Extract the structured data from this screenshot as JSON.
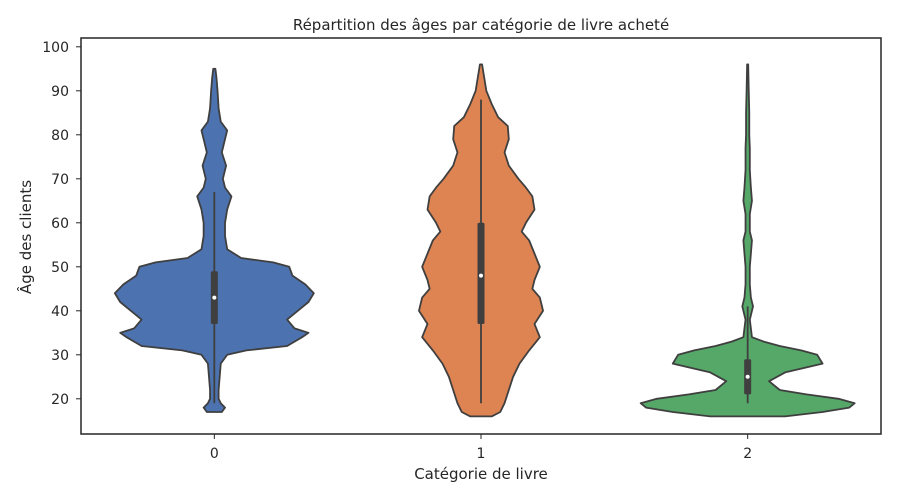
{
  "chart_data": {
    "type": "violin",
    "title": "Répartition des âges par catégorie de livre acheté",
    "xlabel": "Catégorie de livre",
    "ylabel": "Âge des clients",
    "categories": [
      "0",
      "1",
      "2"
    ],
    "ylim": [
      12,
      102
    ],
    "yticks": [
      20,
      30,
      40,
      50,
      60,
      70,
      80,
      90,
      100
    ],
    "grid": false,
    "colors": [
      "#4c72b0",
      "#dd8452",
      "#55a868"
    ],
    "outline_color": "#3f3f3f",
    "violins": [
      {
        "category": "0",
        "min": 17,
        "max": 95,
        "q1": 37,
        "median": 43,
        "q3": 49,
        "whisker_low": 19,
        "whisker_high": 67,
        "profile": [
          [
            17,
            0.07
          ],
          [
            18,
            0.1
          ],
          [
            19,
            0.06
          ],
          [
            20,
            0.04
          ],
          [
            22,
            0.04
          ],
          [
            25,
            0.05
          ],
          [
            28,
            0.06
          ],
          [
            30,
            0.12
          ],
          [
            31,
            0.3
          ],
          [
            32,
            0.68
          ],
          [
            33,
            0.75
          ],
          [
            34,
            0.82
          ],
          [
            35,
            0.88
          ],
          [
            36,
            0.75
          ],
          [
            38,
            0.68
          ],
          [
            40,
            0.78
          ],
          [
            42,
            0.88
          ],
          [
            44,
            0.93
          ],
          [
            46,
            0.85
          ],
          [
            48,
            0.73
          ],
          [
            50,
            0.7
          ],
          [
            51,
            0.55
          ],
          [
            52,
            0.25
          ],
          [
            54,
            0.12
          ],
          [
            57,
            0.1
          ],
          [
            60,
            0.1
          ],
          [
            63,
            0.12
          ],
          [
            66,
            0.16
          ],
          [
            68,
            0.1
          ],
          [
            70,
            0.08
          ],
          [
            73,
            0.11
          ],
          [
            76,
            0.07
          ],
          [
            79,
            0.1
          ],
          [
            81,
            0.12
          ],
          [
            83,
            0.06
          ],
          [
            86,
            0.04
          ],
          [
            90,
            0.03
          ],
          [
            93,
            0.02
          ],
          [
            95,
            0.01
          ]
        ]
      },
      {
        "category": "1",
        "min": 16,
        "max": 96,
        "q1": 37,
        "median": 48,
        "q3": 60,
        "whisker_low": 19,
        "whisker_high": 88,
        "profile": [
          [
            16,
            0.1
          ],
          [
            17,
            0.18
          ],
          [
            19,
            0.22
          ],
          [
            22,
            0.26
          ],
          [
            25,
            0.3
          ],
          [
            28,
            0.36
          ],
          [
            31,
            0.45
          ],
          [
            34,
            0.55
          ],
          [
            37,
            0.5
          ],
          [
            40,
            0.58
          ],
          [
            43,
            0.55
          ],
          [
            45,
            0.48
          ],
          [
            47,
            0.5
          ],
          [
            50,
            0.55
          ],
          [
            53,
            0.5
          ],
          [
            56,
            0.45
          ],
          [
            58,
            0.38
          ],
          [
            60,
            0.42
          ],
          [
            63,
            0.5
          ],
          [
            66,
            0.48
          ],
          [
            68,
            0.42
          ],
          [
            70,
            0.35
          ],
          [
            73,
            0.26
          ],
          [
            76,
            0.22
          ],
          [
            79,
            0.26
          ],
          [
            82,
            0.25
          ],
          [
            84,
            0.16
          ],
          [
            87,
            0.1
          ],
          [
            90,
            0.05
          ],
          [
            93,
            0.03
          ],
          [
            96,
            0.01
          ]
        ]
      },
      {
        "category": "2",
        "min": 16,
        "max": 96,
        "q1": 21,
        "median": 25,
        "q3": 29,
        "whisker_low": 19,
        "whisker_high": 41,
        "profile": [
          [
            16,
            0.35
          ],
          [
            17,
            0.7
          ],
          [
            18,
            0.95
          ],
          [
            19,
            1.0
          ],
          [
            20,
            0.85
          ],
          [
            21,
            0.55
          ],
          [
            22,
            0.3
          ],
          [
            24,
            0.2
          ],
          [
            26,
            0.35
          ],
          [
            28,
            0.7
          ],
          [
            30,
            0.65
          ],
          [
            31,
            0.5
          ],
          [
            32,
            0.3
          ],
          [
            33,
            0.15
          ],
          [
            34,
            0.04
          ],
          [
            36,
            0.03
          ],
          [
            38,
            0.02
          ],
          [
            41,
            0.05
          ],
          [
            43,
            0.03
          ],
          [
            46,
            0.02
          ],
          [
            50,
            0.02
          ],
          [
            53,
            0.03
          ],
          [
            56,
            0.04
          ],
          [
            58,
            0.02
          ],
          [
            62,
            0.02
          ],
          [
            65,
            0.04
          ],
          [
            68,
            0.03
          ],
          [
            72,
            0.02
          ],
          [
            77,
            0.02
          ],
          [
            80,
            0.015
          ],
          [
            85,
            0.015
          ],
          [
            90,
            0.01
          ],
          [
            96,
            0.005
          ]
        ]
      }
    ]
  }
}
